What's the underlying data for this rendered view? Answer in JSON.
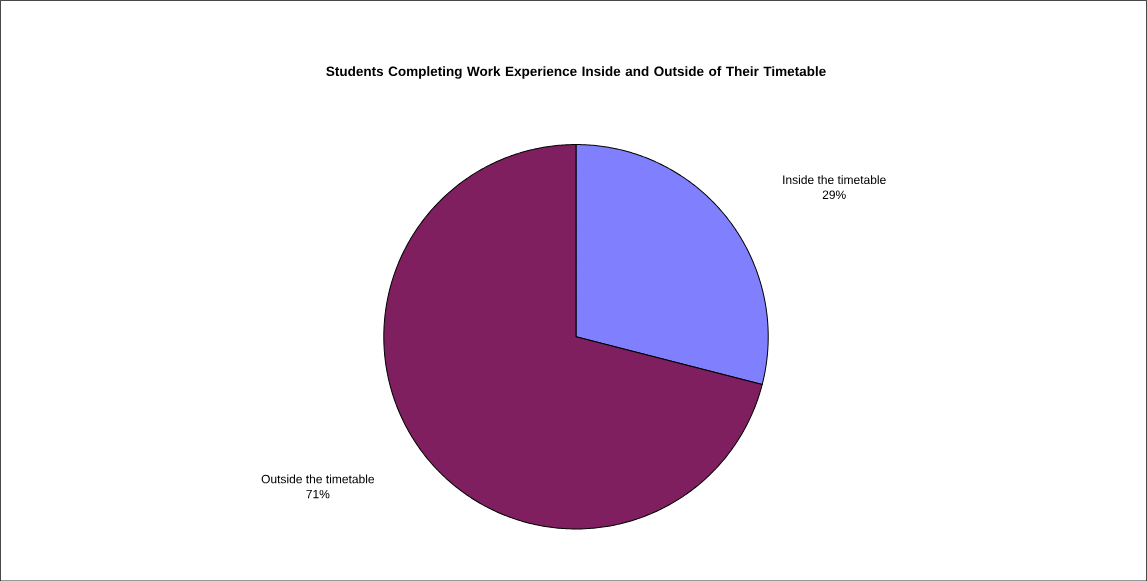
{
  "chart_data": {
    "type": "pie",
    "title": "Students Completing Work Experience Inside and Outside of Their Timetable",
    "categories": [
      "Inside the timetable",
      "Outside the timetable"
    ],
    "values": [
      29,
      71
    ],
    "value_labels": [
      "29%",
      "71%"
    ],
    "colors": [
      "#8080ff",
      "#7f1f5f"
    ],
    "legend": false
  }
}
